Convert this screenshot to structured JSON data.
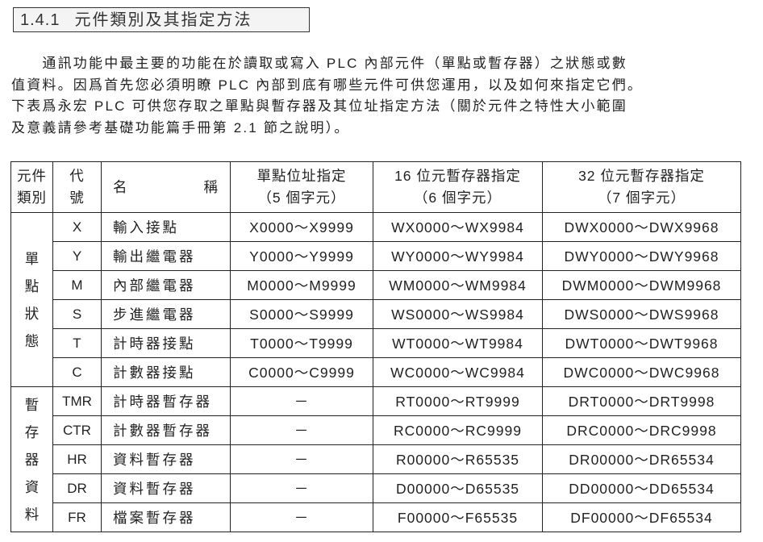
{
  "section": {
    "number": "1.4.1",
    "title": "元件類別及其指定方法"
  },
  "paragraph": [
    "　　通訊功能中最主要的功能在於讀取或寫入 PLC 內部元件（單點或暫存器）之狀態或數",
    "值資料。因爲首先您必須明瞭 PLC 內部到底有哪些元件可供您運用，以及如何來指定它們。",
    "下表爲永宏 PLC 可供您存取之單點與暫存器及其位址指定方法（關於元件之特性大小範圍",
    "及意義請參考基礎功能篇手冊第 2.1 節之說明）。"
  ],
  "table": {
    "headers": {
      "category": [
        "元件",
        "類別"
      ],
      "code": [
        "代",
        "號"
      ],
      "name": [
        "名",
        "稱"
      ],
      "single": [
        "單點位址指定",
        "（5 個字元）"
      ],
      "reg16": [
        "16 位元暫存器指定",
        "（6 個字元）"
      ],
      "reg32": [
        "32 位元暫存器指定",
        "（7 個字元）"
      ]
    },
    "groups": [
      {
        "category": [
          "單",
          "點",
          "狀",
          "態"
        ],
        "rows": [
          {
            "code": "X",
            "name": "輸入接點",
            "single": "X0000～X9999",
            "reg16": "WX0000～WX9984",
            "reg32": "DWX0000～DWX9968"
          },
          {
            "code": "Y",
            "name": "輸出繼電器",
            "single": "Y0000～Y9999",
            "reg16": "WY0000～WY9984",
            "reg32": "DWY0000～DWY9968"
          },
          {
            "code": "M",
            "name": "內部繼電器",
            "single": "M0000～M9999",
            "reg16": "WM0000～WM9984",
            "reg32": "DWM0000～DWM9968"
          },
          {
            "code": "S",
            "name": "步進繼電器",
            "single": "S0000～S9999",
            "reg16": "WS0000～WS9984",
            "reg32": "DWS0000～DWS9968"
          },
          {
            "code": "T",
            "name": "計時器接點",
            "single": "T0000～T9999",
            "reg16": "WT0000～WT9984",
            "reg32": "DWT0000～DWT9968"
          },
          {
            "code": "C",
            "name": "計數器接點",
            "single": "C0000～C9999",
            "reg16": "WC0000～WC9984",
            "reg32": "DWC0000～DWC9968"
          }
        ]
      },
      {
        "category": [
          "暫",
          "存",
          "器",
          "資",
          "料"
        ],
        "rows": [
          {
            "code": "TMR",
            "name": "計時器暫存器",
            "single": "－",
            "reg16": "RT0000～RT9999",
            "reg32": "DRT0000～DRT9998"
          },
          {
            "code": "CTR",
            "name": "計數器暫存器",
            "single": "－",
            "reg16": "RC0000～RC9999",
            "reg32": "DRC0000～DRC9998"
          },
          {
            "code": "HR",
            "name": "資料暫存器",
            "single": "－",
            "reg16": "R00000～R65535",
            "reg32": "DR00000～DR65534"
          },
          {
            "code": "DR",
            "name": "資料暫存器",
            "single": "－",
            "reg16": "D00000～D65535",
            "reg32": "DD00000～DD65534"
          },
          {
            "code": "FR",
            "name": "檔案暫存器",
            "single": "－",
            "reg16": "F00000～F65535",
            "reg32": "DF00000～DF65534"
          }
        ]
      }
    ]
  }
}
